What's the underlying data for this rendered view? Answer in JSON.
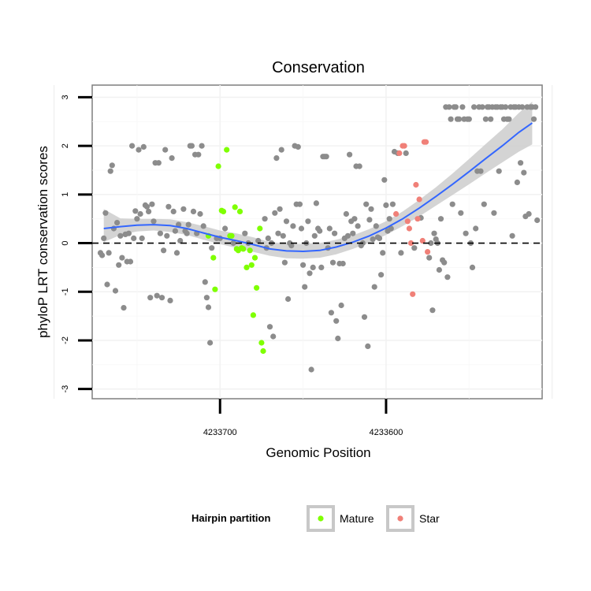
{
  "chart_data": {
    "type": "scatter",
    "title": "Conservation",
    "xlabel": "Genomic Position",
    "ylabel": "phyloP LRT conservation scores",
    "x_reversed": true,
    "xlim": [
      4233777,
      4233506
    ],
    "ylim": [
      -3.2,
      3.25
    ],
    "x_ticks": [
      {
        "value": 4233700,
        "label": "4233700"
      },
      {
        "value": 4233600,
        "label": "4233600"
      }
    ],
    "y_ticks": [
      {
        "value": 3,
        "label": "3"
      },
      {
        "value": 2,
        "label": "2"
      },
      {
        "value": 1,
        "label": "1"
      },
      {
        "value": 0,
        "label": "0"
      },
      {
        "value": -1,
        "label": "-1"
      },
      {
        "value": -2,
        "label": "-2"
      },
      {
        "value": -3,
        "label": "-3"
      }
    ],
    "reference_line": {
      "y": 0,
      "style": "dashed"
    },
    "grid": true,
    "legend": {
      "title": "Hairpin partition",
      "position": "bottom",
      "entries": [
        {
          "label": "Mature",
          "color": "#7fff00"
        },
        {
          "label": "Star",
          "color": "#f08078"
        }
      ]
    },
    "colors": {
      "other": "#8c8c8c",
      "mature": "#7fff00",
      "star": "#f08078",
      "smooth_line": "#3366ff",
      "ribbon": "#cccccc"
    },
    "smooth": {
      "x": [
        4233770,
        4233760,
        4233750,
        4233740,
        4233730,
        4233720,
        4233710,
        4233700,
        4233690,
        4233680,
        4233670,
        4233660,
        4233650,
        4233640,
        4233630,
        4233620,
        4233610,
        4233600,
        4233590,
        4233580,
        4233570,
        4233560,
        4233550,
        4233540,
        4233530,
        4233520,
        4233512
      ],
      "y": [
        0.3,
        0.34,
        0.37,
        0.38,
        0.36,
        0.3,
        0.21,
        0.12,
        0.05,
        -0.03,
        -0.12,
        -0.16,
        -0.17,
        -0.15,
        -0.08,
        0.02,
        0.15,
        0.31,
        0.5,
        0.72,
        0.96,
        1.21,
        1.47,
        1.74,
        2.0,
        2.28,
        2.47
      ],
      "lower": [
        0.02,
        0.17,
        0.24,
        0.26,
        0.23,
        0.17,
        0.07,
        -0.02,
        -0.1,
        -0.18,
        -0.26,
        -0.31,
        -0.32,
        -0.3,
        -0.23,
        -0.12,
        0.01,
        0.17,
        0.35,
        0.55,
        0.77,
        0.99,
        1.21,
        1.44,
        1.66,
        1.88,
        2.03
      ],
      "upper": [
        0.7,
        0.51,
        0.5,
        0.5,
        0.49,
        0.43,
        0.35,
        0.26,
        0.2,
        0.12,
        0.02,
        -0.01,
        -0.02,
        0.0,
        0.07,
        0.16,
        0.29,
        0.45,
        0.65,
        0.89,
        1.15,
        1.43,
        1.73,
        2.04,
        2.34,
        2.68,
        2.91
      ]
    },
    "series": [
      {
        "name": "Mature",
        "points": [
          [
            4233707,
            0.15
          ],
          [
            4233704,
            -0.3
          ],
          [
            4233703,
            -0.95
          ],
          [
            4233701,
            1.58
          ],
          [
            4233699,
            0.67
          ],
          [
            4233698,
            0.65
          ],
          [
            4233696,
            1.92
          ],
          [
            4233694,
            0.15
          ],
          [
            4233693,
            0.15
          ],
          [
            4233691,
            0.74
          ],
          [
            4233690,
            -0.12
          ],
          [
            4233689,
            -0.15
          ],
          [
            4233688,
            0.65
          ],
          [
            4233687,
            -0.1
          ],
          [
            4233686,
            -0.12
          ],
          [
            4233684,
            -0.5
          ],
          [
            4233682,
            -0.15
          ],
          [
            4233681,
            -0.45
          ],
          [
            4233680,
            -1.48
          ],
          [
            4233679,
            -0.3
          ],
          [
            4233678,
            -0.92
          ],
          [
            4233676,
            0.3
          ],
          [
            4233675,
            -2.05
          ],
          [
            4233674,
            -2.22
          ]
        ]
      },
      {
        "name": "Star",
        "points": [
          [
            4233594,
            0.6
          ],
          [
            4233592,
            1.85
          ],
          [
            4233590,
            2.0
          ],
          [
            4233589,
            2.0
          ],
          [
            4233587,
            0.45
          ],
          [
            4233586,
            0.3
          ],
          [
            4233585,
            0.0
          ],
          [
            4233584,
            -1.05
          ],
          [
            4233582,
            1.2
          ],
          [
            4233581,
            0.5
          ],
          [
            4233580,
            0.9
          ],
          [
            4233578,
            0.05
          ],
          [
            4233577,
            2.08
          ],
          [
            4233576,
            2.08
          ],
          [
            4233575,
            -0.18
          ]
        ]
      },
      {
        "points": [
          [
            4233772,
            -0.2
          ],
          [
            4233771,
            -0.25
          ],
          [
            4233770,
            0.1
          ],
          [
            4233769,
            0.62
          ],
          [
            4233768,
            -0.85
          ],
          [
            4233767,
            -0.2
          ],
          [
            4233766,
            1.48
          ],
          [
            4233765,
            1.6
          ],
          [
            4233764,
            0.3
          ],
          [
            4233763,
            -0.98
          ],
          [
            4233762,
            0.42
          ],
          [
            4233761,
            -0.45
          ],
          [
            4233760,
            0.15
          ],
          [
            4233759,
            -0.3
          ],
          [
            4233758,
            -1.33
          ],
          [
            4233757,
            0.18
          ],
          [
            4233756,
            -0.38
          ],
          [
            4233755,
            0.2
          ],
          [
            4233754,
            -0.38
          ],
          [
            4233753,
            2.0
          ],
          [
            4233752,
            0.1
          ],
          [
            4233751,
            0.66
          ],
          [
            4233750,
            0.5
          ],
          [
            4233749,
            1.92
          ],
          [
            4233748,
            0.6
          ],
          [
            4233747,
            0.1
          ],
          [
            4233746,
            1.98
          ],
          [
            4233745,
            0.78
          ],
          [
            4233744,
            0.75
          ],
          [
            4233743,
            0.65
          ],
          [
            4233742,
            -1.12
          ],
          [
            4233741,
            0.8
          ],
          [
            4233740,
            0.45
          ],
          [
            4233739,
            1.65
          ],
          [
            4233738,
            -1.08
          ],
          [
            4233737,
            1.65
          ],
          [
            4233736,
            0.2
          ],
          [
            4233735,
            -1.12
          ],
          [
            4233734,
            -0.15
          ],
          [
            4233733,
            1.92
          ],
          [
            4233732,
            0.15
          ],
          [
            4233731,
            0.75
          ],
          [
            4233730,
            -1.18
          ],
          [
            4233729,
            1.75
          ],
          [
            4233728,
            0.65
          ],
          [
            4233727,
            0.25
          ],
          [
            4233726,
            -0.2
          ],
          [
            4233725,
            0.38
          ],
          [
            4233724,
            0.05
          ],
          [
            4233722,
            0.7
          ],
          [
            4233721,
            0.25
          ],
          [
            4233720,
            0.2
          ],
          [
            4233719,
            0.38
          ],
          [
            4233718,
            2.0
          ],
          [
            4233717,
            2.0
          ],
          [
            4233716,
            0.65
          ],
          [
            4233715,
            1.82
          ],
          [
            4233714,
            0.2
          ],
          [
            4233713,
            1.82
          ],
          [
            4233712,
            0.6
          ],
          [
            4233711,
            2.0
          ],
          [
            4233710,
            0.35
          ],
          [
            4233709,
            -0.8
          ],
          [
            4233708,
            -1.12
          ],
          [
            4233707,
            -1.32
          ],
          [
            4233706,
            -2.05
          ],
          [
            4233705,
            -0.1
          ],
          [
            4233702,
            0.1
          ],
          [
            4233700,
            0.1
          ],
          [
            4233697,
            0.3
          ],
          [
            4233692,
            0.0
          ],
          [
            4233685,
            0.2
          ],
          [
            4233683,
            0.0
          ],
          [
            4233677,
            0.05
          ],
          [
            4233673,
            0.5
          ],
          [
            4233672,
            -0.1
          ],
          [
            4233671,
            0.1
          ],
          [
            4233670,
            -1.72
          ],
          [
            4233669,
            0.0
          ],
          [
            4233668,
            -1.92
          ],
          [
            4233667,
            0.62
          ],
          [
            4233666,
            1.75
          ],
          [
            4233665,
            0.2
          ],
          [
            4233664,
            0.7
          ],
          [
            4233663,
            1.92
          ],
          [
            4233662,
            0.15
          ],
          [
            4233661,
            -0.4
          ],
          [
            4233660,
            0.45
          ],
          [
            4233659,
            -1.15
          ],
          [
            4233658,
            0.0
          ],
          [
            4233657,
            -0.05
          ],
          [
            4233656,
            0.35
          ],
          [
            4233655,
            2.0
          ],
          [
            4233654,
            0.8
          ],
          [
            4233653,
            1.98
          ],
          [
            4233652,
            0.8
          ],
          [
            4233651,
            0.3
          ],
          [
            4233650,
            -0.45
          ],
          [
            4233649,
            -0.9
          ],
          [
            4233648,
            0.0
          ],
          [
            4233647,
            0.45
          ],
          [
            4233646,
            -0.62
          ],
          [
            4233645,
            -2.6
          ],
          [
            4233644,
            -0.5
          ],
          [
            4233643,
            0.15
          ],
          [
            4233642,
            0.82
          ],
          [
            4233641,
            0.3
          ],
          [
            4233640,
            0.25
          ],
          [
            4233639,
            -0.5
          ],
          [
            4233638,
            1.78
          ],
          [
            4233637,
            1.78
          ],
          [
            4233636,
            1.78
          ],
          [
            4233635,
            -0.1
          ],
          [
            4233634,
            0.3
          ],
          [
            4233633,
            -1.43
          ],
          [
            4233632,
            -0.4
          ],
          [
            4233631,
            0.2
          ],
          [
            4233630,
            -1.6
          ],
          [
            4233629,
            -1.96
          ],
          [
            4233628,
            -0.42
          ],
          [
            4233627,
            -1.28
          ],
          [
            4233626,
            -0.42
          ],
          [
            4233625,
            0.1
          ],
          [
            4233624,
            0.6
          ],
          [
            4233623,
            0.15
          ],
          [
            4233622,
            1.82
          ],
          [
            4233621,
            0.45
          ],
          [
            4233620,
            0.2
          ],
          [
            4233619,
            0.5
          ],
          [
            4233618,
            1.58
          ],
          [
            4233617,
            0.35
          ],
          [
            4233616,
            1.58
          ],
          [
            4233615,
            -0.05
          ],
          [
            4233614,
            0.0
          ],
          [
            4233613,
            -1.52
          ],
          [
            4233612,
            0.8
          ],
          [
            4233611,
            -2.12
          ],
          [
            4233610,
            0.48
          ],
          [
            4233609,
            0.7
          ],
          [
            4233608,
            0.08
          ],
          [
            4233607,
            -0.9
          ],
          [
            4233606,
            0.35
          ],
          [
            4233605,
            0.12
          ],
          [
            4233604,
            0.1
          ],
          [
            4233603,
            -0.65
          ],
          [
            4233602,
            -0.2
          ],
          [
            4233601,
            1.3
          ],
          [
            4233600,
            0.78
          ],
          [
            4233599,
            0.25
          ],
          [
            4233598,
            0.5
          ],
          [
            4233597,
            0.3
          ],
          [
            4233596,
            0.8
          ],
          [
            4233595,
            1.88
          ],
          [
            4233593,
            1.85
          ],
          [
            4233591,
            -0.2
          ],
          [
            4233588,
            1.85
          ],
          [
            4233583,
            -0.1
          ],
          [
            4233579,
            0.52
          ],
          [
            4233574,
            -0.3
          ],
          [
            4233573,
            0.0
          ],
          [
            4233572,
            -1.38
          ],
          [
            4233571,
            0.2
          ],
          [
            4233570,
            0.08
          ],
          [
            4233569,
            0.0
          ],
          [
            4233568,
            -0.55
          ],
          [
            4233567,
            0.5
          ],
          [
            4233566,
            -0.35
          ],
          [
            4233565,
            -0.4
          ],
          [
            4233564,
            2.8
          ],
          [
            4233563,
            -0.7
          ],
          [
            4233562,
            2.8
          ],
          [
            4233561,
            2.55
          ],
          [
            4233560,
            0.8
          ],
          [
            4233559,
            2.8
          ],
          [
            4233558,
            2.8
          ],
          [
            4233557,
            2.55
          ],
          [
            4233556,
            2.55
          ],
          [
            4233555,
            0.62
          ],
          [
            4233554,
            2.8
          ],
          [
            4233553,
            2.55
          ],
          [
            4233552,
            0.2
          ],
          [
            4233551,
            2.55
          ],
          [
            4233550,
            2.55
          ],
          [
            4233549,
            0.0
          ],
          [
            4233548,
            -0.5
          ],
          [
            4233547,
            2.8
          ],
          [
            4233546,
            0.3
          ],
          [
            4233545,
            1.48
          ],
          [
            4233544,
            2.8
          ],
          [
            4233543,
            1.48
          ],
          [
            4233542,
            2.8
          ],
          [
            4233541,
            0.8
          ],
          [
            4233540,
            2.55
          ],
          [
            4233539,
            2.8
          ],
          [
            4233538,
            2.8
          ],
          [
            4233537,
            2.55
          ],
          [
            4233536,
            2.8
          ],
          [
            4233535,
            0.62
          ],
          [
            4233534,
            2.8
          ],
          [
            4233533,
            2.8
          ],
          [
            4233532,
            1.48
          ],
          [
            4233531,
            2.8
          ],
          [
            4233530,
            2.8
          ],
          [
            4233529,
            2.55
          ],
          [
            4233528,
            2.8
          ],
          [
            4233527,
            2.55
          ],
          [
            4233526,
            2.55
          ],
          [
            4233525,
            2.8
          ],
          [
            4233524,
            0.15
          ],
          [
            4233523,
            2.8
          ],
          [
            4233522,
            2.8
          ],
          [
            4233521,
            1.25
          ],
          [
            4233520,
            2.8
          ],
          [
            4233519,
            1.65
          ],
          [
            4233518,
            2.8
          ],
          [
            4233517,
            1.45
          ],
          [
            4233516,
            0.55
          ],
          [
            4233515,
            2.8
          ],
          [
            4233514,
            0.6
          ],
          [
            4233513,
            2.8
          ],
          [
            4233512,
            2.8
          ],
          [
            4233511,
            2.55
          ],
          [
            4233510,
            2.8
          ],
          [
            4233509,
            0.47
          ]
        ]
      }
    ]
  }
}
